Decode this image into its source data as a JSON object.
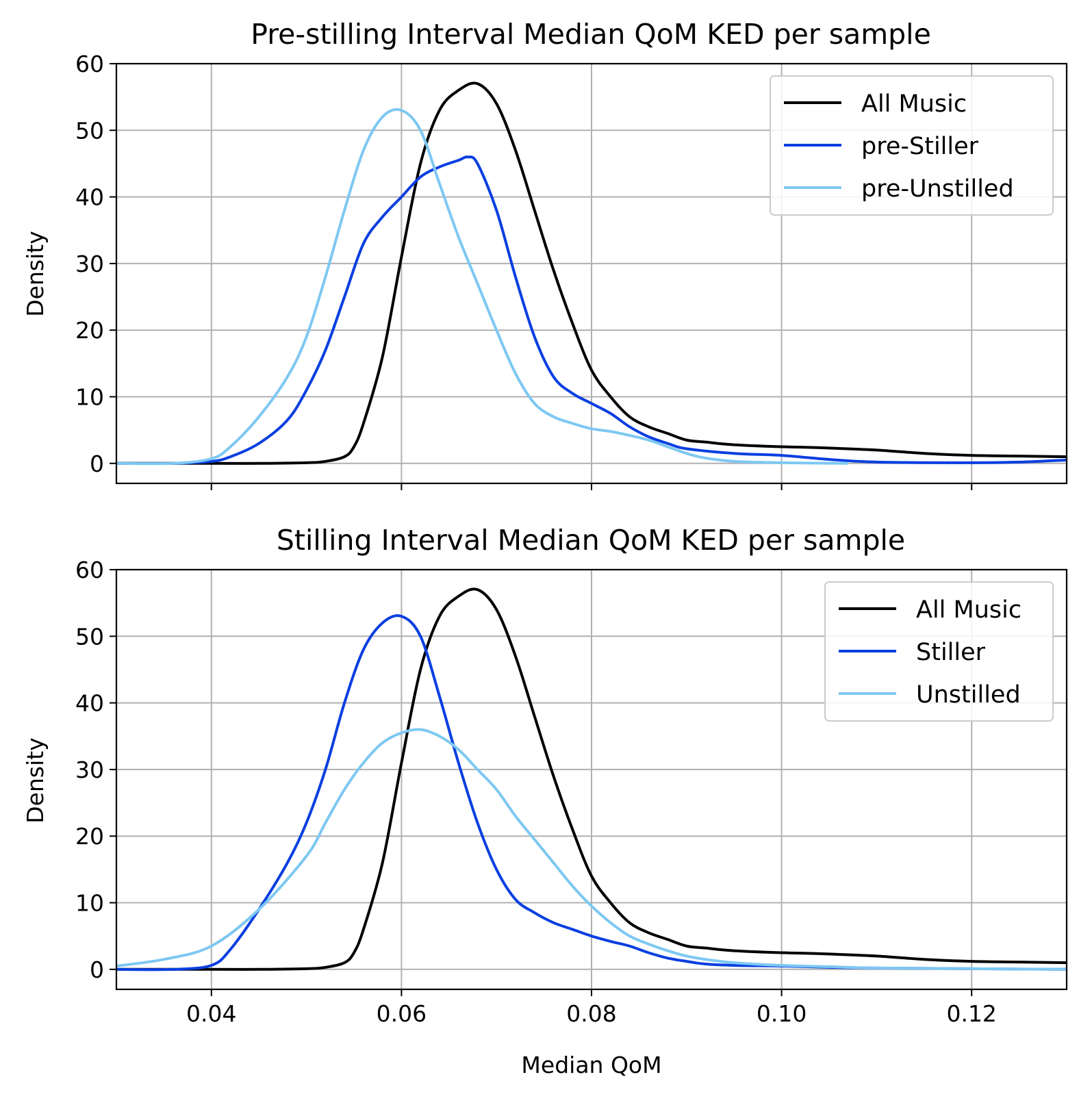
{
  "x_axis": {
    "xlabel": "Median QoM",
    "xlim": [
      0.03,
      0.13
    ],
    "ticks": [
      0.04,
      0.06,
      0.08,
      0.1,
      0.12
    ],
    "tick_labels": [
      "0.04",
      "0.06",
      "0.08",
      "0.10",
      "0.12"
    ]
  },
  "colors": {
    "all_music": "#000000",
    "stiller": "#0a3fe0",
    "unstilled": "#7ec8f2",
    "grid": "#b0b0b0"
  },
  "chart_data": [
    {
      "type": "line",
      "title": "Pre-stilling Interval Median QoM KED per sample",
      "xlabel": "",
      "ylabel": "Density",
      "ylim": [
        -3,
        60
      ],
      "yticks": [
        0,
        10,
        20,
        30,
        40,
        50,
        60
      ],
      "ytick_labels": [
        "0",
        "10",
        "20",
        "30",
        "40",
        "50",
        "60"
      ],
      "grid": true,
      "legend_position": "top-right",
      "series": [
        {
          "name": "All Music",
          "color": "#000000",
          "x": [
            0.03,
            0.04,
            0.045,
            0.05,
            0.052,
            0.054,
            0.055,
            0.056,
            0.058,
            0.06,
            0.062,
            0.064,
            0.066,
            0.068,
            0.07,
            0.072,
            0.074,
            0.076,
            0.078,
            0.08,
            0.082,
            0.084,
            0.086,
            0.088,
            0.09,
            0.092,
            0.095,
            0.1,
            0.103,
            0.105,
            0.11,
            0.115,
            0.12,
            0.125,
            0.13
          ],
          "y": [
            0,
            0,
            0,
            0.1,
            0.3,
            1,
            2.5,
            6,
            16,
            31,
            45,
            53,
            56,
            57,
            54,
            47,
            38,
            29,
            21,
            14,
            10,
            7,
            5.5,
            4.5,
            3.5,
            3.2,
            2.8,
            2.5,
            2.4,
            2.3,
            2,
            1.5,
            1.2,
            1.1,
            1.0
          ]
        },
        {
          "name": "pre-Stiller",
          "color": "#0a3fe0",
          "x": [
            0.03,
            0.036,
            0.04,
            0.042,
            0.045,
            0.048,
            0.05,
            0.052,
            0.054,
            0.056,
            0.058,
            0.06,
            0.062,
            0.064,
            0.066,
            0.067,
            0.068,
            0.07,
            0.072,
            0.074,
            0.076,
            0.078,
            0.08,
            0.082,
            0.084,
            0.086,
            0.088,
            0.09,
            0.095,
            0.1,
            0.105,
            0.11,
            0.12,
            0.125,
            0.13
          ],
          "y": [
            0,
            0,
            0.3,
            1,
            3,
            6.5,
            11,
            17,
            25,
            33,
            37,
            40,
            43,
            44.5,
            45.5,
            46,
            45,
            38,
            28,
            19,
            13,
            10.5,
            9,
            7.5,
            5.5,
            4,
            3,
            2.2,
            1.5,
            1.2,
            0.6,
            0.2,
            0.1,
            0.2,
            0.5
          ]
        },
        {
          "name": "pre-Unstilled",
          "color": "#7ec8f2",
          "x": [
            0.03,
            0.036,
            0.04,
            0.042,
            0.045,
            0.048,
            0.05,
            0.052,
            0.054,
            0.056,
            0.058,
            0.06,
            0.062,
            0.064,
            0.066,
            0.068,
            0.07,
            0.072,
            0.074,
            0.076,
            0.078,
            0.08,
            0.082,
            0.084,
            0.086,
            0.088,
            0.09,
            0.092,
            0.095,
            0.1,
            0.107
          ],
          "y": [
            0,
            0,
            0.7,
            2.5,
            7,
            13,
            19,
            28,
            38,
            47,
            52,
            53,
            50,
            42,
            34,
            27,
            20,
            13.5,
            9,
            7,
            6,
            5.2,
            4.8,
            4.2,
            3.5,
            2.5,
            1.5,
            0.8,
            0.3,
            0.1,
            0
          ]
        }
      ]
    },
    {
      "type": "line",
      "title": "Stilling Interval Median QoM KED per sample",
      "xlabel": "Median QoM",
      "ylabel": "Density",
      "ylim": [
        -3,
        60
      ],
      "yticks": [
        0,
        10,
        20,
        30,
        40,
        50,
        60
      ],
      "ytick_labels": [
        "0",
        "10",
        "20",
        "30",
        "40",
        "50",
        "60"
      ],
      "grid": true,
      "legend_position": "top-right",
      "series": [
        {
          "name": "All Music",
          "color": "#000000",
          "x": [
            0.03,
            0.04,
            0.045,
            0.05,
            0.052,
            0.054,
            0.055,
            0.056,
            0.058,
            0.06,
            0.062,
            0.064,
            0.066,
            0.068,
            0.07,
            0.072,
            0.074,
            0.076,
            0.078,
            0.08,
            0.082,
            0.084,
            0.086,
            0.088,
            0.09,
            0.092,
            0.095,
            0.1,
            0.103,
            0.105,
            0.11,
            0.115,
            0.12,
            0.125,
            0.13
          ],
          "y": [
            0,
            0,
            0,
            0.1,
            0.3,
            1,
            2.5,
            6,
            16,
            31,
            45,
            53,
            56,
            57,
            54,
            47,
            38,
            29,
            21,
            14,
            10,
            7,
            5.5,
            4.5,
            3.5,
            3.2,
            2.8,
            2.5,
            2.4,
            2.3,
            2,
            1.5,
            1.2,
            1.1,
            1.0
          ]
        },
        {
          "name": "Stiller",
          "color": "#0a3fe0",
          "x": [
            0.03,
            0.036,
            0.04,
            0.042,
            0.045,
            0.048,
            0.05,
            0.052,
            0.054,
            0.056,
            0.058,
            0.06,
            0.062,
            0.064,
            0.066,
            0.068,
            0.07,
            0.072,
            0.074,
            0.076,
            0.078,
            0.08,
            0.082,
            0.084,
            0.086,
            0.088,
            0.09,
            0.092,
            0.095,
            0.1,
            0.105,
            0.11,
            0.12,
            0.13
          ],
          "y": [
            0,
            0,
            0.6,
            3,
            9,
            16,
            22,
            30,
            40,
            48,
            52,
            53,
            50,
            41,
            31,
            22,
            15,
            10.5,
            8.5,
            7,
            6,
            5,
            4.2,
            3.5,
            2.5,
            1.7,
            1.2,
            0.8,
            0.6,
            0.5,
            0.3,
            0.2,
            0.1,
            0
          ]
        },
        {
          "name": "Unstilled",
          "color": "#7ec8f2",
          "x": [
            0.03,
            0.035,
            0.04,
            0.045,
            0.05,
            0.052,
            0.054,
            0.056,
            0.058,
            0.06,
            0.062,
            0.064,
            0.066,
            0.068,
            0.07,
            0.072,
            0.074,
            0.076,
            0.078,
            0.08,
            0.082,
            0.084,
            0.086,
            0.088,
            0.09,
            0.092,
            0.095,
            0.1,
            0.105,
            0.11,
            0.12,
            0.13
          ],
          "y": [
            0.5,
            1.5,
            3.5,
            9,
            17,
            22,
            27,
            31,
            34,
            35.5,
            36,
            35,
            33,
            30,
            27,
            23,
            19.5,
            16,
            12.5,
            9.5,
            7,
            5,
            3.8,
            2.8,
            2,
            1.5,
            1,
            0.6,
            0.4,
            0.2,
            0.1,
            0
          ]
        }
      ]
    }
  ]
}
